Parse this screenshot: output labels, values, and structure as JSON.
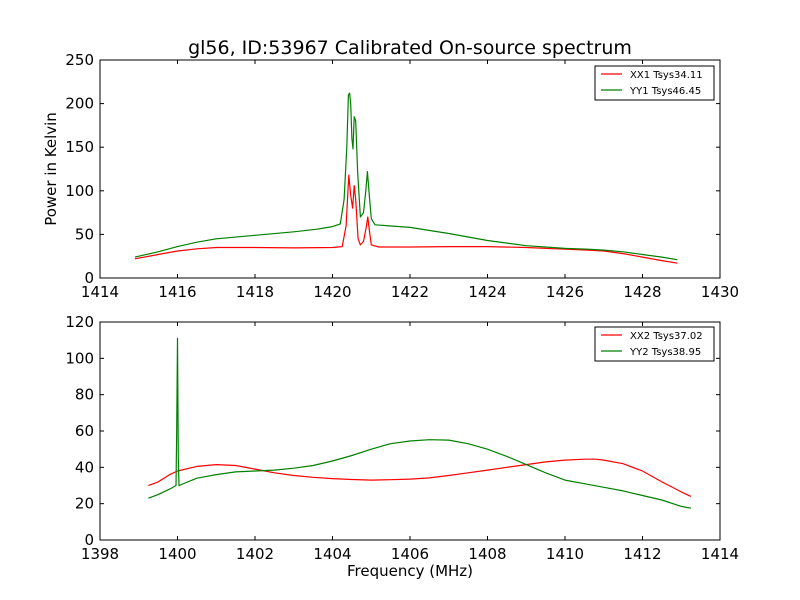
{
  "figure": {
    "title": "gl56, ID:53967 Calibrated On-source spectrum"
  },
  "chart_data": [
    {
      "type": "line",
      "ylabel": "Power in Kelvin",
      "xlabel": "",
      "xlim": [
        1414,
        1430
      ],
      "ylim": [
        0,
        250
      ],
      "xticks": [
        "1414",
        "1416",
        "1418",
        "1420",
        "1422",
        "1424",
        "1426",
        "1428",
        "1430"
      ],
      "yticks": [
        "0",
        "50",
        "100",
        "150",
        "200",
        "250"
      ],
      "grid": false,
      "legend_position": "top-right",
      "series": [
        {
          "name": "XX1 Tsys34.11",
          "color": "#ff0000",
          "points": [
            [
              1414.9,
              22
            ],
            [
              1415.5,
              27
            ],
            [
              1416.0,
              31
            ],
            [
              1416.5,
              33.5
            ],
            [
              1417.0,
              35
            ],
            [
              1418.0,
              35
            ],
            [
              1419.0,
              34.5
            ],
            [
              1420.0,
              35
            ],
            [
              1420.25,
              36
            ],
            [
              1420.35,
              60
            ],
            [
              1420.42,
              118
            ],
            [
              1420.47,
              95
            ],
            [
              1420.52,
              80
            ],
            [
              1420.56,
              106
            ],
            [
              1420.6,
              90
            ],
            [
              1420.66,
              45
            ],
            [
              1420.72,
              38
            ],
            [
              1420.8,
              42
            ],
            [
              1420.87,
              58
            ],
            [
              1420.91,
              70
            ],
            [
              1420.95,
              55
            ],
            [
              1421.0,
              38
            ],
            [
              1421.2,
              35.5
            ],
            [
              1422.0,
              35.5
            ],
            [
              1423.0,
              36
            ],
            [
              1424.0,
              36
            ],
            [
              1425.0,
              35
            ],
            [
              1426.0,
              33
            ],
            [
              1426.6,
              32
            ],
            [
              1427.0,
              31
            ],
            [
              1427.5,
              28
            ],
            [
              1428.0,
              24
            ],
            [
              1428.5,
              20
            ],
            [
              1428.9,
              17
            ]
          ]
        },
        {
          "name": "YY1 Tsys46.45",
          "color": "#008000",
          "points": [
            [
              1414.9,
              24
            ],
            [
              1415.5,
              30
            ],
            [
              1416.0,
              36
            ],
            [
              1416.5,
              41
            ],
            [
              1417.0,
              45
            ],
            [
              1418.0,
              49
            ],
            [
              1419.0,
              53
            ],
            [
              1419.6,
              56
            ],
            [
              1420.0,
              59
            ],
            [
              1420.2,
              62
            ],
            [
              1420.3,
              90
            ],
            [
              1420.37,
              150
            ],
            [
              1420.41,
              210
            ],
            [
              1420.44,
              212
            ],
            [
              1420.47,
              200
            ],
            [
              1420.5,
              160
            ],
            [
              1420.53,
              148
            ],
            [
              1420.56,
              185
            ],
            [
              1420.6,
              180
            ],
            [
              1420.65,
              120
            ],
            [
              1420.72,
              70
            ],
            [
              1420.8,
              75
            ],
            [
              1420.86,
              100
            ],
            [
              1420.9,
              122
            ],
            [
              1420.95,
              95
            ],
            [
              1421.0,
              68
            ],
            [
              1421.1,
              61
            ],
            [
              1422.0,
              58
            ],
            [
              1423.0,
              51
            ],
            [
              1424.0,
              43
            ],
            [
              1425.0,
              37
            ],
            [
              1426.0,
              34
            ],
            [
              1426.6,
              33
            ],
            [
              1427.0,
              32
            ],
            [
              1427.5,
              30
            ],
            [
              1428.0,
              27
            ],
            [
              1428.5,
              24
            ],
            [
              1428.9,
              21
            ]
          ]
        }
      ]
    },
    {
      "type": "line",
      "xlabel": "Frequency (MHz)",
      "ylabel": "",
      "xlim": [
        1398,
        1414
      ],
      "ylim": [
        0,
        120
      ],
      "xticks": [
        "1398",
        "1400",
        "1402",
        "1404",
        "1406",
        "1408",
        "1410",
        "1412",
        "1414"
      ],
      "yticks": [
        "0",
        "20",
        "40",
        "60",
        "80",
        "100",
        "120"
      ],
      "grid": false,
      "legend_position": "top-right",
      "series": [
        {
          "name": "XX2 Tsys37.02",
          "color": "#ff0000",
          "points": [
            [
              1399.25,
              30
            ],
            [
              1399.5,
              32
            ],
            [
              1399.8,
              36
            ],
            [
              1400.0,
              38
            ],
            [
              1400.5,
              40.5
            ],
            [
              1401.0,
              41.5
            ],
            [
              1401.5,
              41
            ],
            [
              1402.0,
              39
            ],
            [
              1402.5,
              37
            ],
            [
              1403.0,
              35.5
            ],
            [
              1403.5,
              34.5
            ],
            [
              1404.0,
              33.8
            ],
            [
              1404.5,
              33.3
            ],
            [
              1405.0,
              33
            ],
            [
              1405.5,
              33.2
            ],
            [
              1406.0,
              33.5
            ],
            [
              1406.5,
              34.2
            ],
            [
              1407.0,
              35.5
            ],
            [
              1407.5,
              37
            ],
            [
              1408.0,
              38.5
            ],
            [
              1408.5,
              40
            ],
            [
              1409.0,
              41.5
            ],
            [
              1409.5,
              43
            ],
            [
              1410.0,
              44
            ],
            [
              1410.5,
              44.5
            ],
            [
              1410.8,
              44.5
            ],
            [
              1411.0,
              44
            ],
            [
              1411.5,
              42
            ],
            [
              1412.0,
              38
            ],
            [
              1412.5,
              32
            ],
            [
              1413.0,
              26.5
            ],
            [
              1413.25,
              24
            ]
          ]
        },
        {
          "name": "YY2 Tsys38.95",
          "color": "#008000",
          "points": [
            [
              1399.25,
              23
            ],
            [
              1399.5,
              25
            ],
            [
              1399.8,
              28
            ],
            [
              1399.96,
              30
            ],
            [
              1399.98,
              60
            ],
            [
              1400.0,
              111
            ],
            [
              1400.02,
              45
            ],
            [
              1400.04,
              30
            ],
            [
              1400.5,
              34
            ],
            [
              1401.0,
              36
            ],
            [
              1401.5,
              37.5
            ],
            [
              1402.0,
              38
            ],
            [
              1402.5,
              38.5
            ],
            [
              1403.0,
              39.5
            ],
            [
              1403.5,
              41
            ],
            [
              1404.0,
              43.5
            ],
            [
              1404.5,
              46.5
            ],
            [
              1405.0,
              50
            ],
            [
              1405.5,
              53
            ],
            [
              1406.0,
              54.5
            ],
            [
              1406.5,
              55.2
            ],
            [
              1407.0,
              55
            ],
            [
              1407.5,
              53
            ],
            [
              1408.0,
              50
            ],
            [
              1408.5,
              46
            ],
            [
              1409.0,
              41.5
            ],
            [
              1409.5,
              37
            ],
            [
              1410.0,
              33
            ],
            [
              1410.5,
              31
            ],
            [
              1411.0,
              29
            ],
            [
              1411.5,
              27
            ],
            [
              1412.0,
              24.5
            ],
            [
              1412.5,
              22
            ],
            [
              1413.0,
              18.5
            ],
            [
              1413.25,
              17.5
            ]
          ]
        }
      ]
    }
  ]
}
